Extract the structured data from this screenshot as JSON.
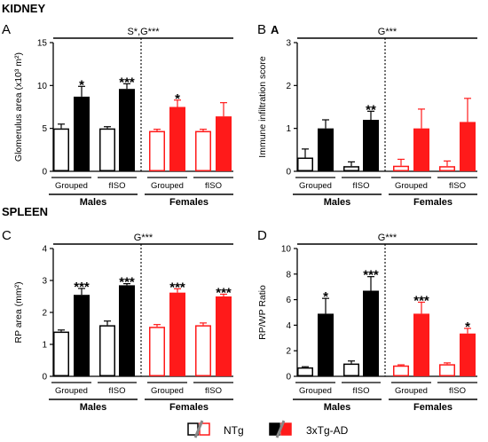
{
  "sections": {
    "kidney": "KIDNEY",
    "spleen": "SPLEEN"
  },
  "colors": {
    "black": "#000000",
    "red": "#ff1a1a",
    "white": "#ffffff"
  },
  "legend": {
    "items": [
      {
        "label": "NTg"
      },
      {
        "label": "3xTg-AD"
      }
    ]
  },
  "chart_data": [
    {
      "type": "bar",
      "panel_label": "A",
      "title": "",
      "ylabel": "Glomerulus area (x10³ m²)",
      "ylim": [
        0,
        15
      ],
      "yticks": [
        0,
        5,
        10,
        15
      ],
      "stat_text": "S*,G***",
      "groups": [
        "Grouped",
        "fISO",
        "Grouped",
        "fISO"
      ],
      "sexes": [
        "Males",
        "Females"
      ],
      "bars": [
        {
          "sex": "Males",
          "group": "Grouped",
          "genotype": "NTg",
          "value": 5.0,
          "error": 0.5,
          "sig": ""
        },
        {
          "sex": "Males",
          "group": "Grouped",
          "genotype": "3xTg-AD",
          "value": 8.7,
          "error": 1.2,
          "sig": "*"
        },
        {
          "sex": "Males",
          "group": "fISO",
          "genotype": "NTg",
          "value": 5.0,
          "error": 0.2,
          "sig": ""
        },
        {
          "sex": "Males",
          "group": "fISO",
          "genotype": "3xTg-AD",
          "value": 9.6,
          "error": 0.6,
          "sig": "***"
        },
        {
          "sex": "Females",
          "group": "Grouped",
          "genotype": "NTg",
          "value": 4.7,
          "error": 0.2,
          "sig": ""
        },
        {
          "sex": "Females",
          "group": "Grouped",
          "genotype": "3xTg-AD",
          "value": 7.5,
          "error": 0.8,
          "sig": "*"
        },
        {
          "sex": "Females",
          "group": "fISO",
          "genotype": "NTg",
          "value": 4.7,
          "error": 0.2,
          "sig": ""
        },
        {
          "sex": "Females",
          "group": "fISO",
          "genotype": "3xTg-AD",
          "value": 6.4,
          "error": 1.6,
          "sig": ""
        }
      ]
    },
    {
      "type": "bar",
      "panel_label": "B",
      "sub_label": "A",
      "title": "",
      "ylabel": "Immune infiltration score",
      "ylim": [
        0,
        3
      ],
      "yticks": [
        0,
        1,
        2,
        3
      ],
      "stat_text": "G***",
      "groups": [
        "Grouped",
        "fISO",
        "Grouped",
        "fISO"
      ],
      "sexes": [
        "Males",
        "Females"
      ],
      "bars": [
        {
          "sex": "Males",
          "group": "Grouped",
          "genotype": "NTg",
          "value": 0.32,
          "error": 0.2,
          "sig": ""
        },
        {
          "sex": "Males",
          "group": "Grouped",
          "genotype": "3xTg-AD",
          "value": 1.0,
          "error": 0.2,
          "sig": ""
        },
        {
          "sex": "Males",
          "group": "fISO",
          "genotype": "NTg",
          "value": 0.12,
          "error": 0.1,
          "sig": ""
        },
        {
          "sex": "Males",
          "group": "fISO",
          "genotype": "3xTg-AD",
          "value": 1.2,
          "error": 0.2,
          "sig": "**"
        },
        {
          "sex": "Females",
          "group": "Grouped",
          "genotype": "NTg",
          "value": 0.13,
          "error": 0.15,
          "sig": ""
        },
        {
          "sex": "Females",
          "group": "Grouped",
          "genotype": "3xTg-AD",
          "value": 1.0,
          "error": 0.45,
          "sig": ""
        },
        {
          "sex": "Females",
          "group": "fISO",
          "genotype": "NTg",
          "value": 0.12,
          "error": 0.12,
          "sig": ""
        },
        {
          "sex": "Females",
          "group": "fISO",
          "genotype": "3xTg-AD",
          "value": 1.15,
          "error": 0.55,
          "sig": ""
        }
      ]
    },
    {
      "type": "bar",
      "panel_label": "C",
      "title": "",
      "ylabel": "RP area (mm²)",
      "ylim": [
        0,
        4
      ],
      "yticks": [
        0,
        1,
        2,
        3,
        4
      ],
      "stat_text": "G***",
      "groups": [
        "Grouped",
        "fISO",
        "Grouped",
        "fISO"
      ],
      "sexes": [
        "Males",
        "Females"
      ],
      "bars": [
        {
          "sex": "Males",
          "group": "Grouped",
          "genotype": "NTg",
          "value": 1.4,
          "error": 0.05,
          "sig": ""
        },
        {
          "sex": "Males",
          "group": "Grouped",
          "genotype": "3xTg-AD",
          "value": 2.55,
          "error": 0.2,
          "sig": "***"
        },
        {
          "sex": "Males",
          "group": "fISO",
          "genotype": "NTg",
          "value": 1.6,
          "error": 0.13,
          "sig": ""
        },
        {
          "sex": "Males",
          "group": "fISO",
          "genotype": "3xTg-AD",
          "value": 2.85,
          "error": 0.05,
          "sig": "***"
        },
        {
          "sex": "Females",
          "group": "Grouped",
          "genotype": "NTg",
          "value": 1.55,
          "error": 0.07,
          "sig": ""
        },
        {
          "sex": "Females",
          "group": "Grouped",
          "genotype": "3xTg-AD",
          "value": 2.62,
          "error": 0.12,
          "sig": "***"
        },
        {
          "sex": "Females",
          "group": "fISO",
          "genotype": "NTg",
          "value": 1.6,
          "error": 0.07,
          "sig": ""
        },
        {
          "sex": "Females",
          "group": "fISO",
          "genotype": "3xTg-AD",
          "value": 2.5,
          "error": 0.07,
          "sig": "***"
        }
      ]
    },
    {
      "type": "bar",
      "panel_label": "D",
      "title": "",
      "ylabel": "RP/WP Ratio",
      "ylim": [
        0,
        10
      ],
      "yticks": [
        0,
        2,
        4,
        6,
        8,
        10
      ],
      "stat_text": "G***",
      "groups": [
        "Grouped",
        "fISO",
        "Grouped",
        "fISO"
      ],
      "sexes": [
        "Males",
        "Females"
      ],
      "bars": [
        {
          "sex": "Males",
          "group": "Grouped",
          "genotype": "NTg",
          "value": 0.7,
          "error": 0.05,
          "sig": ""
        },
        {
          "sex": "Males",
          "group": "Grouped",
          "genotype": "3xTg-AD",
          "value": 4.9,
          "error": 1.2,
          "sig": "*"
        },
        {
          "sex": "Males",
          "group": "fISO",
          "genotype": "NTg",
          "value": 1.0,
          "error": 0.2,
          "sig": ""
        },
        {
          "sex": "Males",
          "group": "fISO",
          "genotype": "3xTg-AD",
          "value": 6.7,
          "error": 1.1,
          "sig": "***"
        },
        {
          "sex": "Females",
          "group": "Grouped",
          "genotype": "NTg",
          "value": 0.85,
          "error": 0.05,
          "sig": ""
        },
        {
          "sex": "Females",
          "group": "Grouped",
          "genotype": "3xTg-AD",
          "value": 4.9,
          "error": 0.9,
          "sig": "***"
        },
        {
          "sex": "Females",
          "group": "fISO",
          "genotype": "NTg",
          "value": 0.95,
          "error": 0.1,
          "sig": ""
        },
        {
          "sex": "Females",
          "group": "fISO",
          "genotype": "3xTg-AD",
          "value": 3.35,
          "error": 0.4,
          "sig": "*"
        }
      ]
    }
  ]
}
